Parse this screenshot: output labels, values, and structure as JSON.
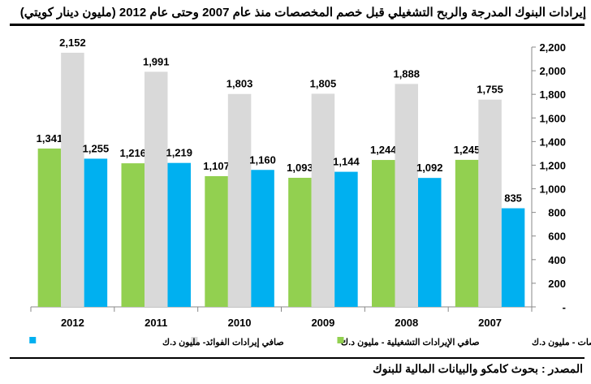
{
  "chart_data": {
    "type": "bar",
    "title": "إيرادات البنوك المدرجة والربح التشغيلي قبل خصم المخصصات منذ عام 2007 وحتى عام 2012 (مليون دينار كويتي)",
    "categories": [
      "2012",
      "2011",
      "2010",
      "2009",
      "2008",
      "2007"
    ],
    "series": [
      {
        "name": "الربح التشغيلي قبل خصم المخصصات - مليون د.ك",
        "color": "#92d050",
        "values": [
          1341,
          1216,
          1107,
          1093,
          1244,
          1245
        ]
      },
      {
        "name": "صافي الإيرادات التشغيلية - مليون د.ك",
        "color": "#d9d9d9",
        "values": [
          2152,
          1991,
          1803,
          1805,
          1888,
          1755
        ]
      },
      {
        "name": "صافي إيرادات الفوائد- مليون د.ك",
        "color": "#00b0f0",
        "values": [
          1255,
          1219,
          1160,
          1144,
          1092,
          835
        ]
      }
    ],
    "ylim": [
      0,
      2200
    ],
    "yticks": [
      0,
      200,
      400,
      600,
      800,
      1000,
      1200,
      1400,
      1600,
      1800,
      2000,
      2200
    ],
    "ytick_labels": [
      "-",
      "200",
      "400",
      "600",
      "800",
      "1,000",
      "1,200",
      "1,400",
      "1,600",
      "1,800",
      "2,000",
      "2,200"
    ],
    "axis_side": "right",
    "legend": "bottom",
    "grid": false
  },
  "source": "المصدر : بحوث كامكو والبيانات المالية للبنوك"
}
